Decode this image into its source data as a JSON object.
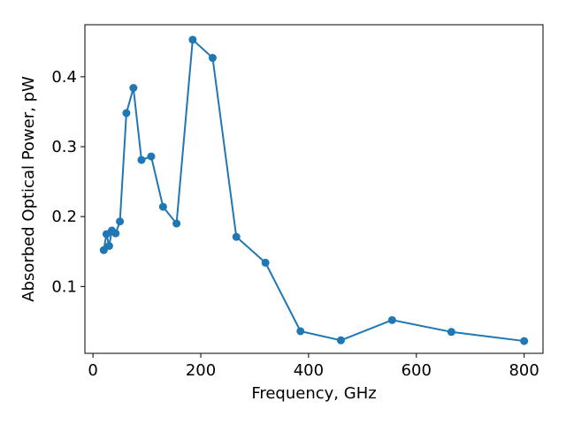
{
  "chart_data": {
    "type": "line",
    "xlabel": "Frequency, GHz",
    "ylabel": "Absorbed Optical Power, pW",
    "xlim": [
      -15,
      835
    ],
    "ylim": [
      -0.0
    ],
    "x_ticks": [
      0,
      200,
      400,
      600,
      800
    ],
    "x_tick_labels": [
      "0",
      "200",
      "400",
      "600",
      "800"
    ],
    "y_ticks": [
      0.1,
      0.2,
      0.3,
      0.4
    ],
    "y_tick_labels": [
      "0.1",
      "0.2",
      "0.3",
      "0.4"
    ],
    "grid": false,
    "marker": "circle",
    "color": "#1f77b4",
    "series": [
      {
        "x": [
          20,
          25,
          30,
          35,
          42,
          50,
          62,
          75,
          90,
          108,
          130,
          155,
          185,
          222,
          266,
          320,
          385,
          460,
          555,
          665,
          800
        ],
        "y": [
          0.152,
          0.175,
          0.158,
          0.18,
          0.176,
          0.193,
          0.348,
          0.384,
          0.281,
          0.286,
          0.214,
          0.19,
          0.453,
          0.427,
          0.171,
          0.134,
          0.036,
          0.023,
          0.052,
          0.035,
          0.022
        ]
      }
    ]
  }
}
